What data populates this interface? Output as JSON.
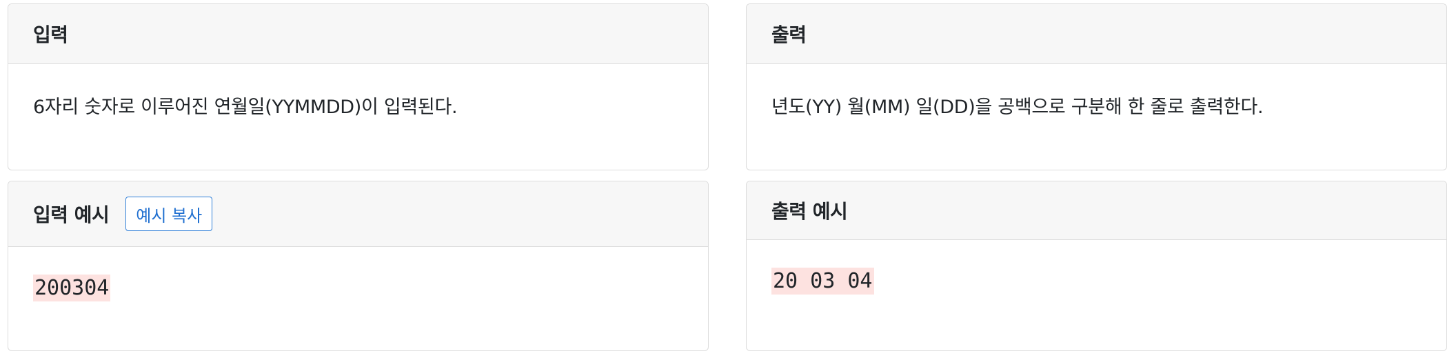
{
  "input": {
    "title": "입력",
    "description": "6자리 숫자로 이루어진 연월일(YYMMDD)이 입력된다."
  },
  "output": {
    "title": "출력",
    "description": "년도(YY) 월(MM) 일(DD)을 공백으로 구분해 한 줄로 출력한다."
  },
  "input_example": {
    "title": "입력 예시",
    "copy_label": "예시 복사",
    "value": "200304"
  },
  "output_example": {
    "title": "출력 예시",
    "value": "20 03 04"
  }
}
